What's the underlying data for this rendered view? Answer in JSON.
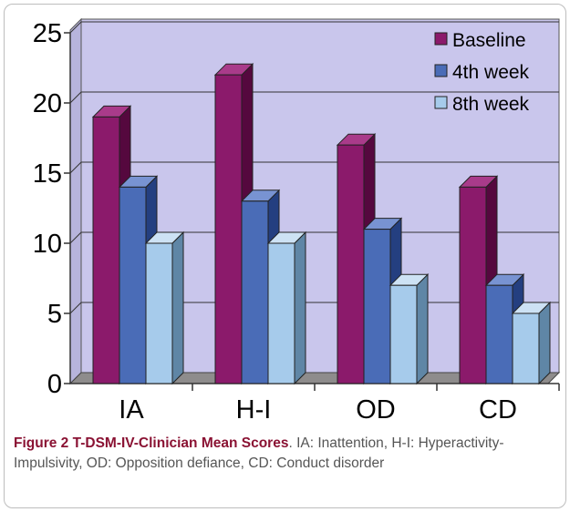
{
  "chart_data": {
    "type": "bar",
    "style": "3d-clustered-column",
    "categories": [
      "IA",
      "H-I",
      "OD",
      "CD"
    ],
    "series": [
      {
        "name": "Baseline",
        "values": [
          19,
          22,
          17,
          14
        ],
        "front": "#8b1a6b",
        "side": "#55083e",
        "top": "#a93b8a"
      },
      {
        "name": "4th week",
        "values": [
          14,
          13,
          11,
          7
        ],
        "front": "#4a6cb7",
        "side": "#243f80",
        "top": "#7893d2"
      },
      {
        "name": "8th week",
        "values": [
          10,
          10,
          7,
          5
        ],
        "front": "#a6cbeb",
        "side": "#5f86a6",
        "top": "#cde2f4"
      }
    ],
    "ylim": [
      0,
      25
    ],
    "yticks": [
      0,
      5,
      10,
      15,
      20,
      25
    ],
    "grid": true,
    "legend_position": "top-right",
    "plot_background": "#c9c6ec"
  },
  "caption": {
    "label": "Figure 2 T-DSM-IV-Clinician Mean Scores",
    "text": ". IA: Inattention, H-I: Hyperactivity-Impulsivity, OD: Opposition defiance, CD: Conduct disorder"
  }
}
